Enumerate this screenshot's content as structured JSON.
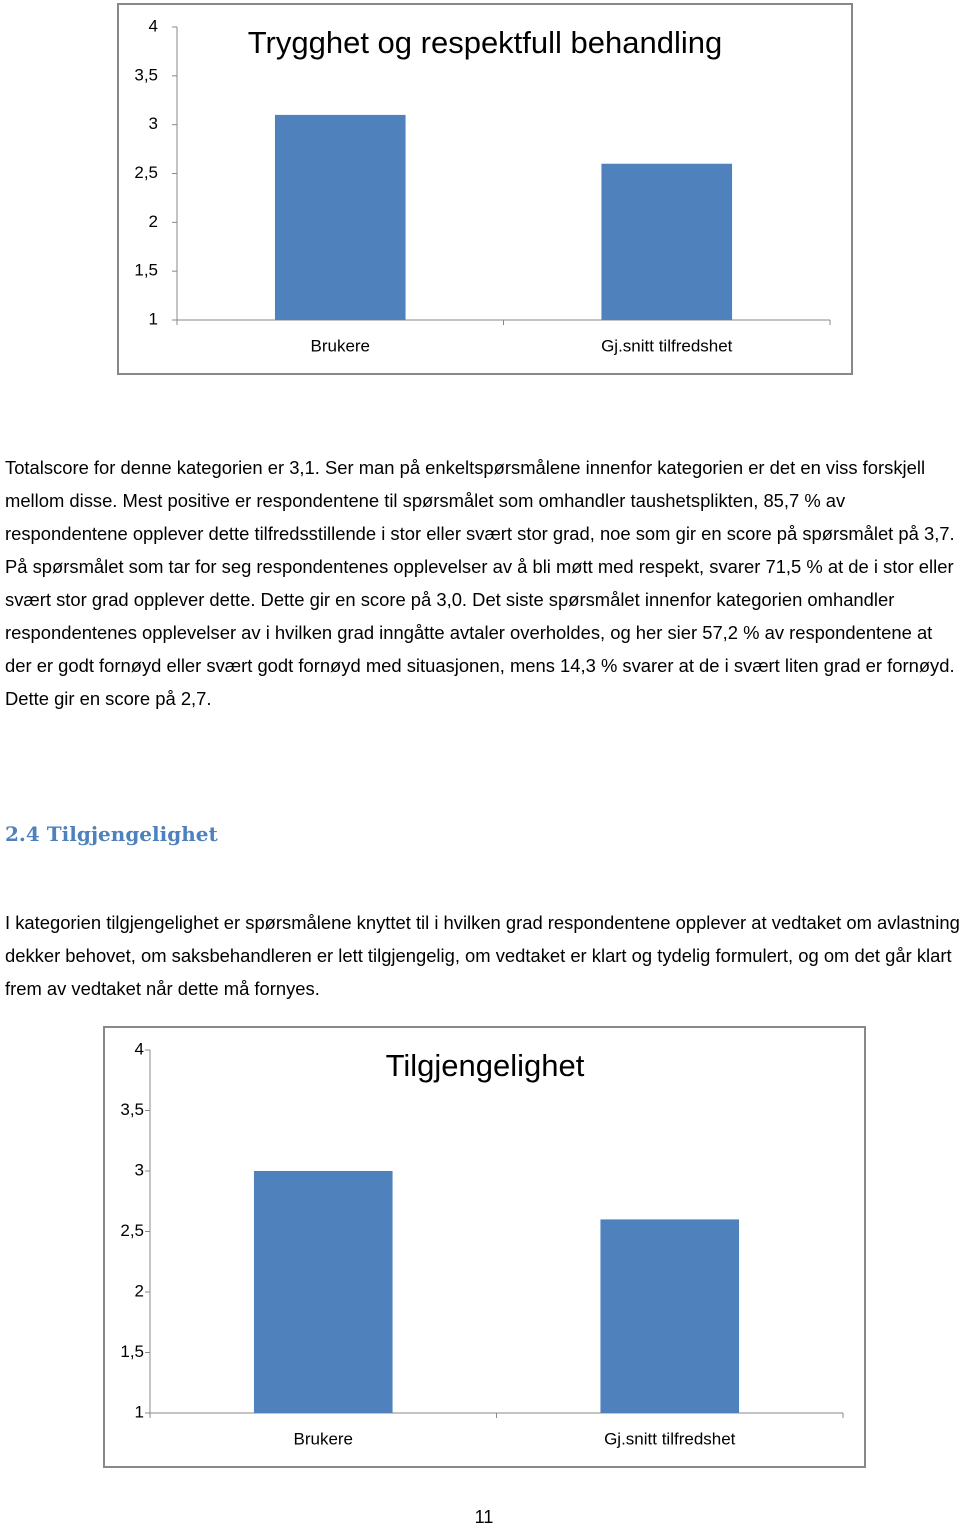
{
  "chart_data": [
    {
      "type": "bar",
      "title": "Trygghet og respektfull behandling",
      "categories": [
        "Brukere",
        "Gj.snitt tilfredshet"
      ],
      "values": [
        3.1,
        2.6
      ],
      "color": "#4f81bd",
      "ylim": [
        1,
        4
      ],
      "yticks": [
        1,
        {
          "value": 1.5,
          "label": "1,5"
        },
        2,
        {
          "value": 2.5,
          "label": "2,5"
        },
        3,
        {
          "value": 3.5,
          "label": "3,5"
        },
        4
      ]
    },
    {
      "type": "bar",
      "title": "Tilgjengelighet",
      "categories": [
        "Brukere",
        "Gj.snitt tilfredshet"
      ],
      "values": [
        3.0,
        2.6
      ],
      "color": "#4f81bd",
      "ylim": [
        1,
        4
      ],
      "yticks": [
        1,
        {
          "value": 1.5,
          "label": "1,5"
        },
        2,
        {
          "value": 2.5,
          "label": "2,5"
        },
        3,
        {
          "value": 3.5,
          "label": "3,5"
        },
        4
      ]
    }
  ],
  "paragraphs": [
    "Totalscore for denne kategorien er 3,1. Ser man på enkeltspørsmålene innenfor kategorien er det en viss forskjell mellom disse. Mest positive er respondentene til spørsmålet som omhandler taushetsplikten, 85,7 % av respondentene opplever dette tilfredsstillende i stor eller svært stor grad, noe som gir en score på spørsmålet på 3,7. På spørsmålet som tar for seg respondentenes opplevelser av å bli møtt med respekt, svarer 71,5 % at de i stor eller svært stor grad opplever dette. Dette gir en score på 3,0. Det siste spørsmålet innenfor kategorien omhandler respondentenes opplevelser av i hvilken grad inngåtte avtaler overholdes, og her sier 57,2 % av respondentene at der er godt fornøyd eller svært godt fornøyd med situasjonen, mens 14,3 % svarer at de i svært liten grad er fornøyd. Dette gir en score på 2,7.",
    "I kategorien tilgjengelighet er spørsmålene knyttet til i hvilken grad respondentene opplever at vedtaket om avlastning dekker behovet, om saksbehandleren er lett tilgjengelig, om vedtaket er klart og tydelig formulert, og om det går klart frem av vedtaket når dette må fornyes."
  ],
  "heading": "2.4 Tilgjengelighet",
  "page_number": "11"
}
